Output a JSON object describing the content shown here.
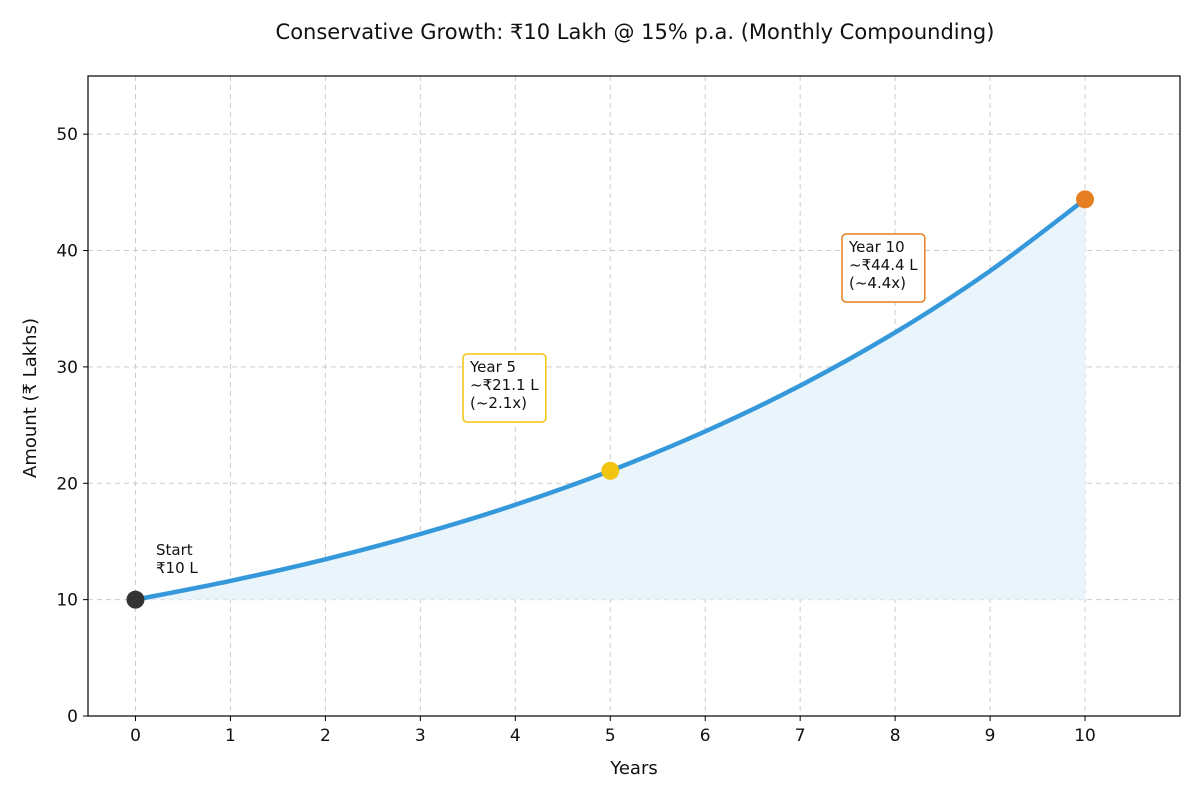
{
  "chart_data": {
    "type": "line",
    "title": "Conservative Growth: ₹10 Lakh @ 15% p.a. (Monthly Compounding)",
    "xlabel": "Years",
    "ylabel": "Amount (₹ Lakhs)",
    "xlim": [
      -0.5,
      11
    ],
    "ylim": [
      0,
      55
    ],
    "xticks": [
      0,
      1,
      2,
      3,
      4,
      5,
      6,
      7,
      8,
      9,
      10
    ],
    "yticks": [
      0,
      10,
      20,
      30,
      40,
      50
    ],
    "grid": true,
    "series": [
      {
        "x": [
          0,
          1,
          2,
          3,
          4,
          5,
          6,
          7,
          8,
          9,
          10
        ],
        "y": [
          10.0,
          11.61,
          13.47,
          15.64,
          18.15,
          21.07,
          24.46,
          28.39,
          32.96,
          38.25,
          44.4
        ],
        "color": "#3498db",
        "fill_color": "#eaf4fb",
        "fill_baseline": 10
      }
    ],
    "markers": [
      {
        "x": 0,
        "y": 10.0,
        "color": "#333333"
      },
      {
        "x": 5,
        "y": 21.07,
        "color": "#f1c40f"
      },
      {
        "x": 10,
        "y": 44.4,
        "color": "#e67e22"
      }
    ],
    "annotations": [
      {
        "lines": [
          "Start",
          "₹10 L"
        ],
        "boxed": false,
        "border_color": ""
      },
      {
        "lines": [
          "Year 5",
          "~₹21.1 L",
          "(~2.1x)"
        ],
        "boxed": true,
        "border_color": "#f1c40f"
      },
      {
        "lines": [
          "Year 10",
          "~₹44.4 L",
          "(~4.4x)"
        ],
        "boxed": true,
        "border_color": "#e67e22"
      }
    ]
  }
}
